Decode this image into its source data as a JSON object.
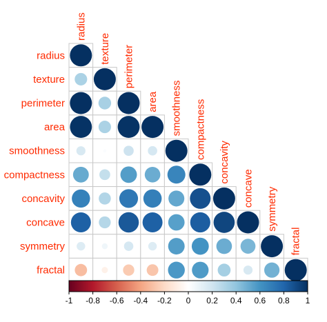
{
  "chart_data": {
    "type": "heatmap",
    "variables": [
      "radius",
      "texture",
      "perimeter",
      "area",
      "smoothness",
      "compactness",
      "concavity",
      "concave",
      "symmetry",
      "fractal"
    ],
    "column_label_display": [
      "radius",
      "texture",
      "perimeter",
      "area",
      "smoothness",
      "compactness",
      "concavity",
      "concave",
      "symmetry",
      "fractal"
    ],
    "matrix_lower": [
      [
        1.0
      ],
      [
        0.32,
        1.0
      ],
      [
        1.0,
        0.33,
        1.0
      ],
      [
        0.99,
        0.32,
        0.99,
        1.0
      ],
      [
        0.17,
        0.02,
        0.21,
        0.18,
        1.0
      ],
      [
        0.51,
        0.24,
        0.56,
        0.5,
        0.66,
        1.0
      ],
      [
        0.68,
        0.3,
        0.72,
        0.69,
        0.52,
        0.88,
        1.0
      ],
      [
        0.82,
        0.29,
        0.85,
        0.82,
        0.55,
        0.83,
        0.92,
        1.0
      ],
      [
        0.15,
        0.07,
        0.18,
        0.15,
        0.56,
        0.6,
        0.5,
        0.46,
        1.0
      ],
      [
        -0.31,
        -0.08,
        -0.26,
        -0.28,
        0.58,
        0.57,
        0.34,
        0.17,
        0.48,
        1.0
      ]
    ],
    "method": "circle",
    "shape": "lower-triangle",
    "colorbar": {
      "range": [
        -1,
        1
      ],
      "ticks": [
        "-1",
        "-0.8",
        "-0.6",
        "-0.4",
        "-0.2",
        "0",
        "0.2",
        "0.4",
        "0.6",
        "0.8",
        "1"
      ],
      "colors": [
        "#67001f",
        "#b2182b",
        "#d6604d",
        "#f4a582",
        "#fddbc7",
        "#ffffff",
        "#d1e5f0",
        "#92c5de",
        "#4393c3",
        "#2166ac",
        "#053061"
      ]
    },
    "label_color": "#ff2a00",
    "grid": true
  }
}
